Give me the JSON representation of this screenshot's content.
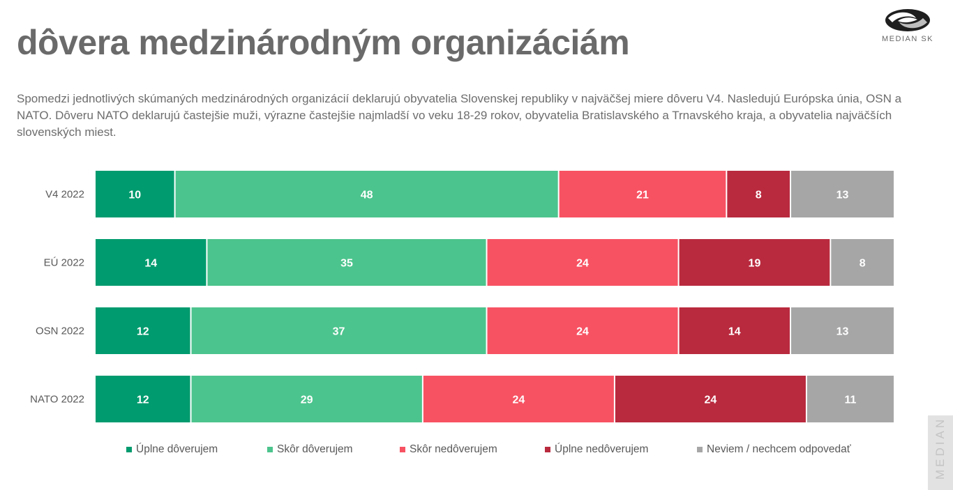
{
  "title": "dôvera medzinárodným organizáciám",
  "brand": {
    "logo_text": "MEDIAN SK",
    "side_tab_text": "MEDIAN"
  },
  "description": "Spomedzi jednotlivých skúmaných medzinárodných organizácií deklarujú obyvatelia Slovenskej republiky v najväčšej miere dôveru V4. Nasledujú Európska únia, OSN a NATO. Dôveru NATO deklarujú častejšie muži, výrazne častejšie najmladší vo veku 18-29 rokov, obyvatelia Bratislavského a Trnavského kraja, a obyvatelia najväčších slovenských miest.",
  "colors": {
    "fully_trust": "#009b6e",
    "rather_trust": "#4cc48d",
    "rather_distrust": "#f75262",
    "fully_distrust": "#b92a3e",
    "dont_know": "#a6a6a6",
    "label_text": "#ffffff"
  },
  "chart_data": {
    "type": "bar",
    "orientation": "horizontal",
    "stacked": true,
    "normalized": true,
    "categories": [
      "V4 2022",
      "EÚ 2022",
      "OSN 2022",
      "NATO 2022"
    ],
    "series": [
      {
        "name": "Úplne dôverujem",
        "color": "#009b6e",
        "values": [
          10,
          14,
          12,
          12
        ]
      },
      {
        "name": "Skôr dôverujem",
        "color": "#4cc48d",
        "values": [
          48,
          35,
          37,
          29
        ]
      },
      {
        "name": "Skôr nedôverujem",
        "color": "#f75262",
        "values": [
          21,
          24,
          24,
          24
        ]
      },
      {
        "name": "Úplne nedôverujem",
        "color": "#b92a3e",
        "values": [
          8,
          19,
          14,
          24
        ]
      },
      {
        "name": "Neviem / nechcem odpovedať",
        "color": "#a6a6a6",
        "values": [
          13,
          8,
          13,
          11
        ]
      }
    ],
    "legend_position": "bottom",
    "grid": false
  }
}
